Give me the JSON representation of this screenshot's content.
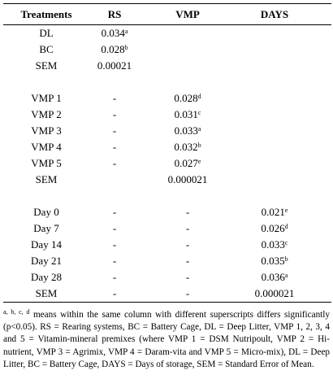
{
  "table": {
    "columns": [
      "Treatments",
      "RS",
      "VMP",
      "DAYS"
    ],
    "groups": [
      {
        "rows": [
          {
            "treatment": "DL",
            "rs": {
              "value": "0.034",
              "sup": "a"
            }
          },
          {
            "treatment": "BC",
            "rs": {
              "value": "0.028",
              "sup": "b"
            }
          },
          {
            "treatment": "SEM",
            "rs": {
              "value": "0.00021"
            }
          }
        ]
      },
      {
        "rows": [
          {
            "treatment": "VMP 1",
            "rs": {
              "value": "-"
            },
            "vmp": {
              "value": "0.028",
              "sup": "d"
            }
          },
          {
            "treatment": "VMP 2",
            "rs": {
              "value": "-"
            },
            "vmp": {
              "value": "0.031",
              "sup": "c"
            }
          },
          {
            "treatment": "VMP 3",
            "rs": {
              "value": "-"
            },
            "vmp": {
              "value": "0.033",
              "sup": "a"
            }
          },
          {
            "treatment": "VMP 4",
            "rs": {
              "value": "-"
            },
            "vmp": {
              "value": "0.032",
              "sup": "b"
            }
          },
          {
            "treatment": "VMP 5",
            "rs": {
              "value": "-"
            },
            "vmp": {
              "value": "0.027",
              "sup": "e"
            }
          },
          {
            "treatment": "SEM",
            "vmp": {
              "value": "0.000021"
            }
          }
        ]
      },
      {
        "rows": [
          {
            "treatment": "Day 0",
            "rs": {
              "value": "-"
            },
            "vmp": {
              "value": "-"
            },
            "days": {
              "value": "0.021",
              "sup": "e"
            }
          },
          {
            "treatment": "Day 7",
            "rs": {
              "value": "-"
            },
            "vmp": {
              "value": "-"
            },
            "days": {
              "value": "0.026",
              "sup": "d"
            }
          },
          {
            "treatment": "Day 14",
            "rs": {
              "value": "-"
            },
            "vmp": {
              "value": "-"
            },
            "days": {
              "value": "0.033",
              "sup": "c"
            }
          },
          {
            "treatment": "Day 21",
            "rs": {
              "value": "-"
            },
            "vmp": {
              "value": "-"
            },
            "days": {
              "value": "0.035",
              "sup": "b"
            }
          },
          {
            "treatment": "Day 28",
            "rs": {
              "value": "-"
            },
            "vmp": {
              "value": "-"
            },
            "days": {
              "value": "0.036",
              "sup": "a"
            }
          },
          {
            "treatment": "SEM",
            "rs": {
              "value": "-"
            },
            "vmp": {
              "value": "-"
            },
            "days": {
              "value": "0.000021"
            }
          }
        ]
      }
    ],
    "footnote": {
      "sup": "a, b, c, d",
      "text": " means within the same column with different superscripts differs significantly (p<0.05). RS = Rearing systems, BC = Battery Cage, DL = Deep Litter, VMP 1, 2, 3, 4 and 5 = Vitamin-mineral premixes (where VMP 1 = DSM Nutripoult, VMP 2 = Hi-nutrient, VMP 3 = Agrimix, VMP 4 = Daram-vita and VMP 5 = Micro-mix), DL = Deep Litter, BC = Battery Cage, DAYS = Days of storage, SEM = Standard Error of Mean."
    }
  }
}
